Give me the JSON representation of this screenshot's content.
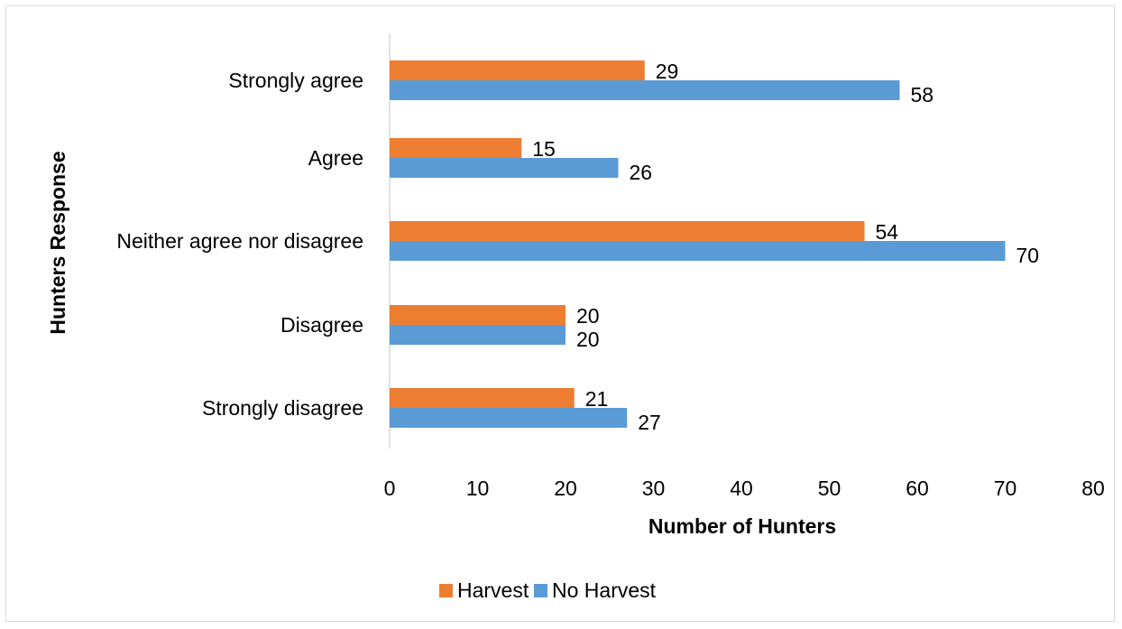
{
  "chart_data": {
    "type": "bar",
    "orientation": "horizontal",
    "categories": [
      "Strongly agree",
      "Agree",
      "Neither agree nor disagree",
      "Disagree",
      "Strongly disagree"
    ],
    "series": [
      {
        "name": "Harvest",
        "values": [
          29,
          15,
          54,
          20,
          21
        ],
        "color": "#ed7d31"
      },
      {
        "name": "No Harvest",
        "values": [
          58,
          26,
          70,
          20,
          27
        ],
        "color": "#5b9bd5"
      }
    ],
    "xlabel": "Number of Hunters",
    "ylabel": "Hunters Response",
    "xlim": [
      0,
      80
    ],
    "x_ticks": [
      "0",
      "10",
      "20",
      "30",
      "40",
      "50",
      "60",
      "70",
      "80"
    ],
    "grid": false,
    "legend_position": "bottom",
    "data_labels": true
  }
}
